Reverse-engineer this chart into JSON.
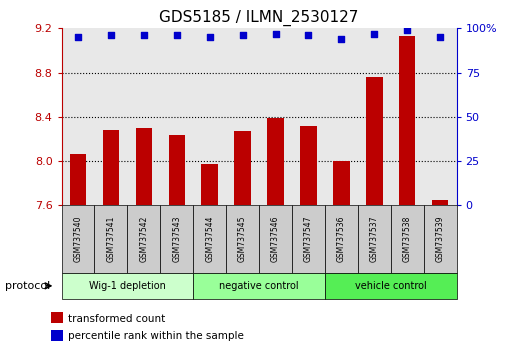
{
  "title": "GDS5185 / ILMN_2530127",
  "samples": [
    "GSM737540",
    "GSM737541",
    "GSM737542",
    "GSM737543",
    "GSM737544",
    "GSM737545",
    "GSM737546",
    "GSM737547",
    "GSM737536",
    "GSM737537",
    "GSM737538",
    "GSM737539"
  ],
  "transformed_count": [
    8.06,
    8.28,
    8.3,
    8.24,
    7.97,
    8.27,
    8.39,
    8.32,
    8.0,
    8.76,
    9.13,
    7.65
  ],
  "percentile_rank": [
    95,
    96,
    96,
    96,
    95,
    96,
    97,
    96,
    94,
    97,
    99,
    95
  ],
  "ylim_left": [
    7.6,
    9.2
  ],
  "ylim_right": [
    0,
    100
  ],
  "yticks_left": [
    7.6,
    8.0,
    8.4,
    8.8,
    9.2
  ],
  "yticks_right": [
    0,
    25,
    50,
    75,
    100
  ],
  "grid_values": [
    8.0,
    8.4,
    8.8
  ],
  "bar_color": "#bb0000",
  "dot_color": "#0000cc",
  "groups": [
    {
      "label": "Wig-1 depletion",
      "start": 0,
      "end": 4,
      "color": "#ccffcc"
    },
    {
      "label": "negative control",
      "start": 4,
      "end": 8,
      "color": "#99ff99"
    },
    {
      "label": "vehicle control",
      "start": 8,
      "end": 12,
      "color": "#55ee55"
    }
  ],
  "protocol_label": "protocol",
  "legend_items": [
    {
      "label": "transformed count",
      "color": "#bb0000"
    },
    {
      "label": "percentile rank within the sample",
      "color": "#0000cc"
    }
  ],
  "background_color": "#ffffff",
  "plot_bg_color": "#e8e8e8"
}
